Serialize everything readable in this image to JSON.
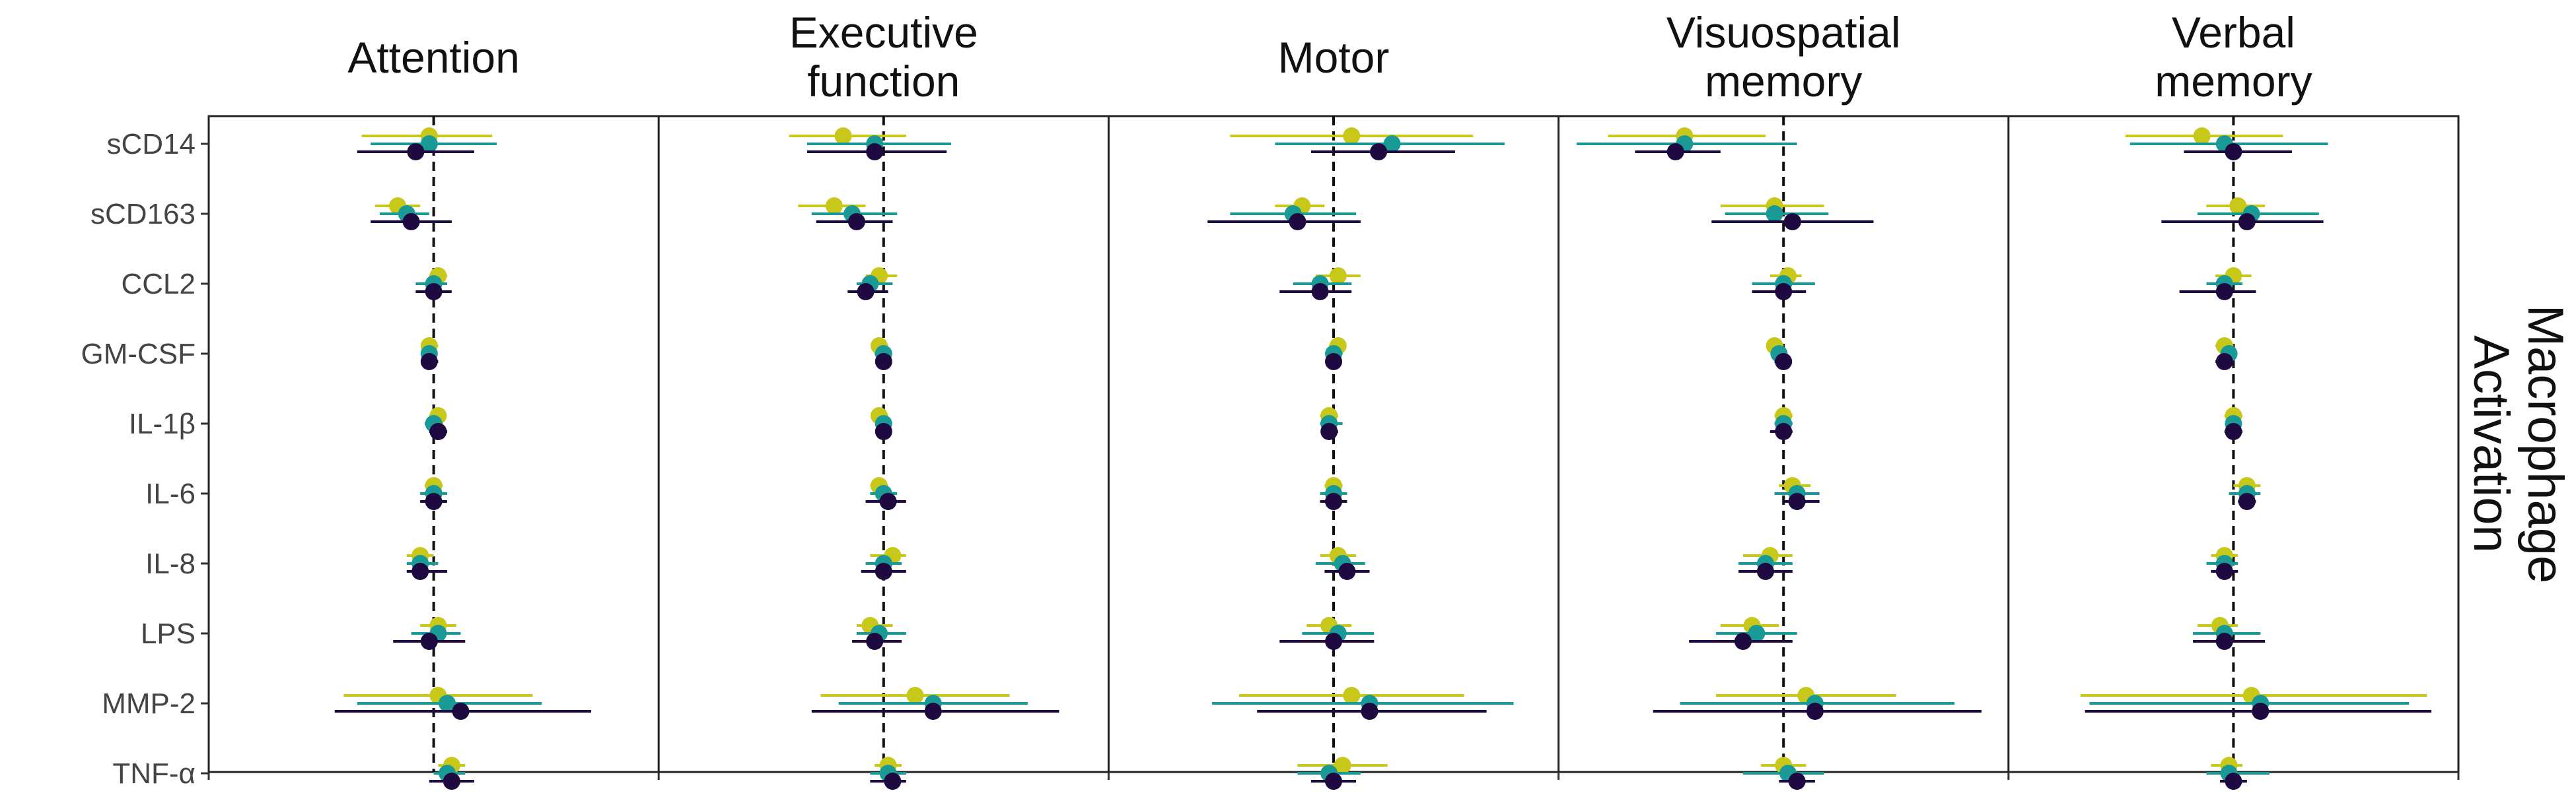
{
  "chart_data": {
    "type": "forest",
    "facets": [
      "Attention",
      "Executive\nfunction",
      "Motor",
      "Visuospatial\nmemory",
      "Verbal\nmemory"
    ],
    "row_strip_label": "Macrophage\nActivation",
    "rows": [
      "sCD14",
      "sCD163",
      "CCL2",
      "GM-CSF",
      "IL-1β",
      "IL-6",
      "IL-8",
      "LPS",
      "MMP-2",
      "TNF-α"
    ],
    "reference_line": 0,
    "xlim": [
      -0.5,
      0.5
    ],
    "grid": false,
    "legend": "none",
    "series_colors": [
      "#c8c81a",
      "#1a9a96",
      "#1e0a40"
    ],
    "series": [
      {
        "color": "#c8c81a",
        "values": [
          [
            [
              -0.01,
              -0.16,
              0.13
            ],
            [
              -0.08,
              -0.13,
              -0.03
            ],
            [
              0.01,
              -0.01,
              0.03
            ],
            [
              -0.01,
              -0.02,
              0.01
            ],
            [
              0.01,
              -0.01,
              0.02
            ],
            [
              0,
              -0.02,
              0.02
            ],
            [
              -0.03,
              -0.06,
              0
            ],
            [
              0.01,
              -0.03,
              0.05
            ],
            [
              0.01,
              -0.2,
              0.22
            ],
            [
              0.04,
              0.01,
              0.07
            ]
          ],
          [
            [
              -0.09,
              -0.21,
              0.05
            ],
            [
              -0.11,
              -0.19,
              -0.04
            ],
            [
              -0.01,
              -0.04,
              0.03
            ],
            [
              -0.01,
              -0.02,
              0.01
            ],
            [
              -0.01,
              -0.02,
              0.01
            ],
            [
              -0.01,
              -0.03,
              0.01
            ],
            [
              0.02,
              -0.03,
              0.05
            ],
            [
              -0.03,
              -0.06,
              0.02
            ],
            [
              0.07,
              -0.14,
              0.28
            ],
            [
              0.01,
              -0.02,
              0.04
            ]
          ],
          [
            [
              0.04,
              -0.23,
              0.31
            ],
            [
              -0.07,
              -0.13,
              -0.02
            ],
            [
              0.01,
              -0.04,
              0.06
            ],
            [
              0.01,
              -0.01,
              0.02
            ],
            [
              -0.01,
              -0.03,
              0.01
            ],
            [
              0,
              -0.02,
              0.02
            ],
            [
              0.01,
              -0.03,
              0.05
            ],
            [
              -0.01,
              -0.06,
              0.04
            ],
            [
              0.04,
              -0.21,
              0.29
            ],
            [
              0.02,
              -0.08,
              0.12
            ]
          ],
          [
            [
              -0.22,
              -0.39,
              -0.04
            ],
            [
              -0.02,
              -0.14,
              0.09
            ],
            [
              0.01,
              -0.03,
              0.04
            ],
            [
              -0.02,
              -0.03,
              0
            ],
            [
              0,
              -0.02,
              0.02
            ],
            [
              0.02,
              -0.01,
              0.06
            ],
            [
              -0.03,
              -0.09,
              0.02
            ],
            [
              -0.07,
              -0.14,
              -0.01
            ],
            [
              0.05,
              -0.15,
              0.25
            ],
            [
              0,
              -0.05,
              0.05
            ]
          ],
          [
            [
              -0.07,
              -0.24,
              0.11
            ],
            [
              0.01,
              -0.06,
              0.07
            ],
            [
              0,
              -0.04,
              0.04
            ],
            [
              -0.02,
              -0.04,
              0
            ],
            [
              0,
              -0.02,
              0.02
            ],
            [
              0.03,
              0,
              0.06
            ],
            [
              -0.02,
              -0.05,
              0.01
            ],
            [
              -0.03,
              -0.08,
              0.01
            ],
            [
              0.04,
              -0.34,
              0.43
            ],
            [
              -0.01,
              -0.05,
              0.02
            ]
          ]
        ]
      },
      {
        "color": "#1a9a96",
        "values": [
          [
            [
              -0.01,
              -0.14,
              0.14
            ],
            [
              -0.06,
              -0.12,
              -0.01
            ],
            [
              0,
              -0.04,
              0.03
            ],
            [
              -0.01,
              -0.02,
              0
            ],
            [
              0,
              -0.02,
              0.02
            ],
            [
              0,
              -0.03,
              0.03
            ],
            [
              -0.03,
              -0.06,
              0.01
            ],
            [
              0.01,
              -0.05,
              0.06
            ],
            [
              0.03,
              -0.17,
              0.24
            ],
            [
              0.03,
              0,
              0.07
            ]
          ],
          [
            [
              -0.02,
              -0.17,
              0.15
            ],
            [
              -0.07,
              -0.16,
              0.03
            ],
            [
              -0.03,
              -0.06,
              0.02
            ],
            [
              0,
              -0.02,
              0.01
            ],
            [
              0,
              -0.01,
              0.01
            ],
            [
              0,
              -0.03,
              0.03
            ],
            [
              0,
              -0.04,
              0.04
            ],
            [
              -0.01,
              -0.06,
              0.05
            ],
            [
              0.11,
              -0.1,
              0.32
            ],
            [
              0.01,
              -0.03,
              0.05
            ]
          ],
          [
            [
              0.13,
              -0.13,
              0.38
            ],
            [
              -0.09,
              -0.23,
              0.05
            ],
            [
              -0.03,
              -0.09,
              0.04
            ],
            [
              0,
              -0.01,
              0.02
            ],
            [
              -0.01,
              -0.03,
              0.02
            ],
            [
              0,
              -0.03,
              0.03
            ],
            [
              0.02,
              -0.04,
              0.07
            ],
            [
              0.01,
              -0.07,
              0.09
            ],
            [
              0.08,
              -0.27,
              0.4
            ],
            [
              -0.01,
              -0.08,
              0.06
            ]
          ],
          [
            [
              -0.22,
              -0.46,
              0.03
            ],
            [
              -0.02,
              -0.13,
              0.1
            ],
            [
              0,
              -0.07,
              0.07
            ],
            [
              -0.01,
              -0.02,
              0
            ],
            [
              0,
              -0.02,
              0.02
            ],
            [
              0.03,
              -0.02,
              0.08
            ],
            [
              -0.04,
              -0.1,
              0.02
            ],
            [
              -0.06,
              -0.15,
              0.03
            ],
            [
              0.07,
              -0.23,
              0.38
            ],
            [
              0.01,
              -0.09,
              0.09
            ]
          ],
          [
            [
              -0.02,
              -0.23,
              0.21
            ],
            [
              0.04,
              -0.08,
              0.19
            ],
            [
              -0.02,
              -0.06,
              0.02
            ],
            [
              -0.01,
              -0.02,
              0
            ],
            [
              0,
              -0.01,
              0.01
            ],
            [
              0.03,
              -0.01,
              0.06
            ],
            [
              -0.02,
              -0.06,
              0.01
            ],
            [
              -0.02,
              -0.09,
              0.06
            ],
            [
              0.06,
              -0.32,
              0.39
            ],
            [
              -0.01,
              -0.06,
              0.08
            ]
          ]
        ]
      },
      {
        "color": "#1e0a40",
        "values": [
          [
            [
              -0.04,
              -0.17,
              0.09
            ],
            [
              -0.05,
              -0.14,
              0.04
            ],
            [
              0,
              -0.04,
              0.04
            ],
            [
              -0.01,
              -0.02,
              0.01
            ],
            [
              0.01,
              -0.01,
              0.03
            ],
            [
              0,
              -0.03,
              0.03
            ],
            [
              -0.03,
              -0.06,
              0.03
            ],
            [
              -0.01,
              -0.09,
              0.07
            ],
            [
              0.06,
              -0.22,
              0.35
            ],
            [
              0.04,
              -0.01,
              0.09
            ]
          ],
          [
            [
              -0.02,
              -0.17,
              0.14
            ],
            [
              -0.06,
              -0.15,
              0.02
            ],
            [
              -0.04,
              -0.08,
              0.01
            ],
            [
              0,
              -0.01,
              0.01
            ],
            [
              0,
              -0.01,
              0.01
            ],
            [
              0.01,
              -0.04,
              0.05
            ],
            [
              0,
              -0.05,
              0.05
            ],
            [
              -0.02,
              -0.07,
              0.04
            ],
            [
              0.11,
              -0.16,
              0.39
            ],
            [
              0.02,
              -0.03,
              0.05
            ]
          ],
          [
            [
              0.1,
              -0.05,
              0.27
            ],
            [
              -0.08,
              -0.28,
              0.06
            ],
            [
              -0.03,
              -0.12,
              0.04
            ],
            [
              0,
              -0.01,
              0.01
            ],
            [
              -0.01,
              -0.02,
              0.01
            ],
            [
              0,
              -0.03,
              0.03
            ],
            [
              0.03,
              -0.02,
              0.08
            ],
            [
              0,
              -0.12,
              0.09
            ],
            [
              0.08,
              -0.17,
              0.34
            ],
            [
              0,
              -0.05,
              0.05
            ]
          ],
          [
            [
              -0.24,
              -0.33,
              -0.14
            ],
            [
              0.02,
              -0.16,
              0.2
            ],
            [
              0,
              -0.07,
              0.05
            ],
            [
              0,
              -0.02,
              0.01
            ],
            [
              0,
              -0.03,
              0.02
            ],
            [
              0.03,
              0,
              0.08
            ],
            [
              -0.04,
              -0.1,
              0.02
            ],
            [
              -0.09,
              -0.21,
              0.02
            ],
            [
              0.07,
              -0.29,
              0.44
            ],
            [
              0.03,
              -0.01,
              0.07
            ]
          ],
          [
            [
              0,
              -0.11,
              0.13
            ],
            [
              0.03,
              -0.16,
              0.2
            ],
            [
              -0.02,
              -0.12,
              0.05
            ],
            [
              -0.02,
              -0.04,
              0
            ],
            [
              0,
              -0.02,
              0.02
            ],
            [
              0.03,
              0.01,
              0.05
            ],
            [
              -0.02,
              -0.05,
              0.01
            ],
            [
              -0.02,
              -0.09,
              0.07
            ],
            [
              0.06,
              -0.33,
              0.44
            ],
            [
              0,
              -0.03,
              0.03
            ]
          ]
        ]
      }
    ]
  }
}
